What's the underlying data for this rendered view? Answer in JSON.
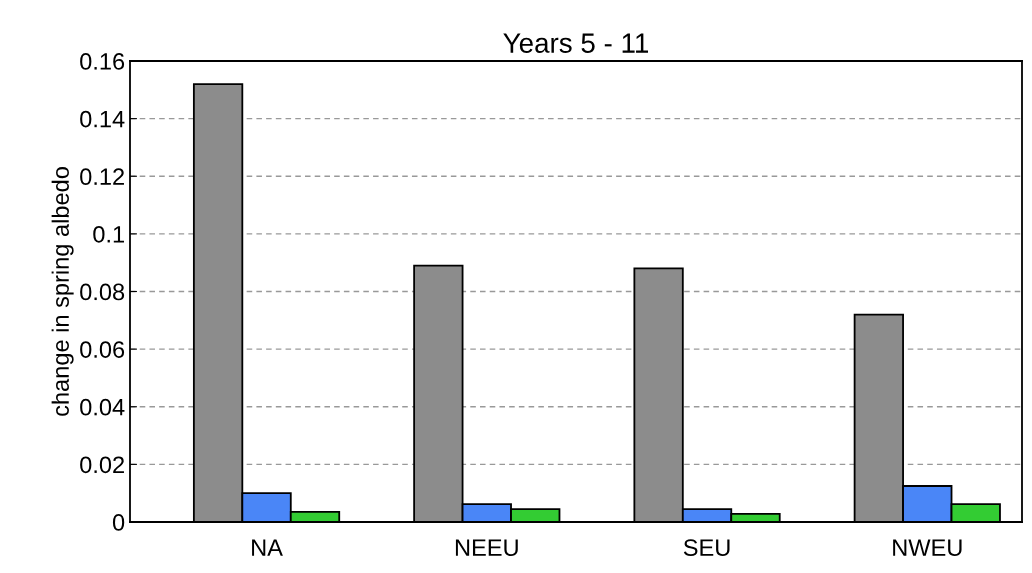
{
  "chart_data": {
    "type": "bar",
    "title": "Years 5 - 11",
    "ylabel": "change in spring albedo",
    "categories": [
      "NA",
      "NEEU",
      "SEU",
      "NWEU"
    ],
    "series": [
      {
        "color": "#8c8c8c",
        "values": [
          0.152,
          0.089,
          0.088,
          0.072
        ]
      },
      {
        "color": "#4a86f7",
        "values": [
          0.01,
          0.0062,
          0.0045,
          0.0125
        ]
      },
      {
        "color": "#33cc33",
        "values": [
          0.0035,
          0.0045,
          0.0028,
          0.0062
        ]
      }
    ],
    "ylim": [
      0,
      0.16
    ],
    "yticks": [
      0,
      0.02,
      0.04,
      0.06,
      0.08,
      0.1,
      0.12,
      0.14,
      0.16
    ],
    "grid": "y",
    "legend": false
  }
}
